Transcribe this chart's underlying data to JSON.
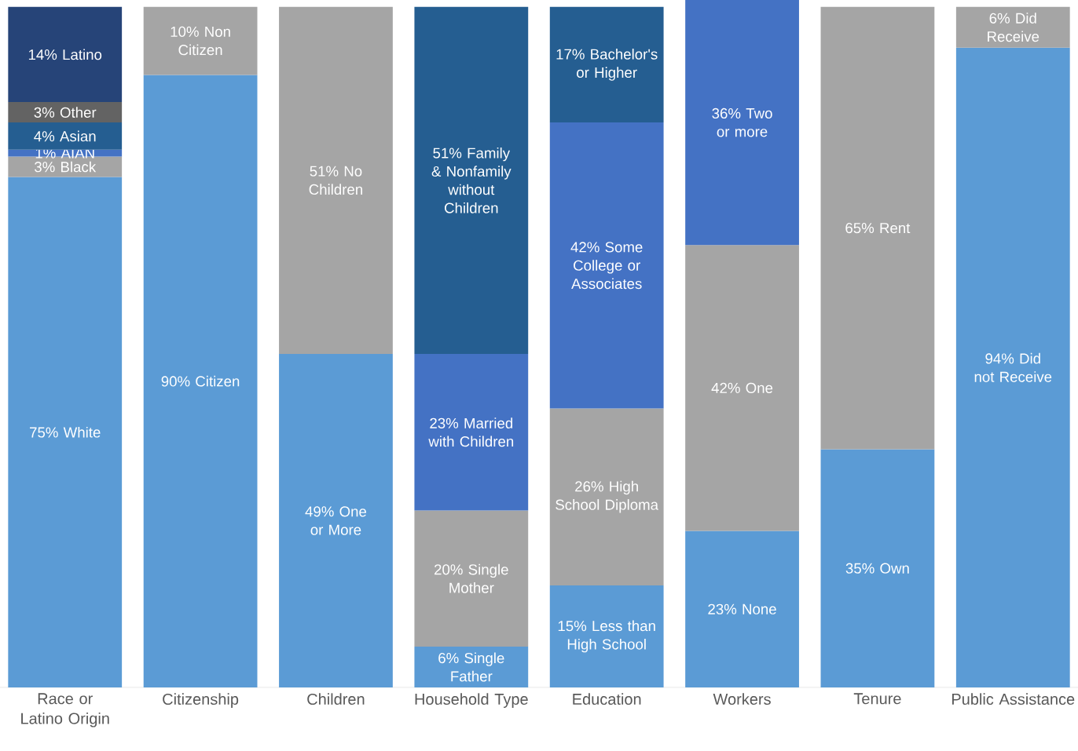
{
  "chart_data": {
    "type": "bar",
    "stacked": true,
    "data_labels": true,
    "categories": [
      "Race or Latino Origin",
      "Citizenship",
      "Children",
      "Household Type",
      "Education",
      "Workers",
      "Tenure",
      "Public Assistance"
    ],
    "ylim": [
      0,
      101
    ],
    "series": [
      {
        "values": [
          75,
          90,
          49,
          6,
          15,
          23,
          35,
          94
        ],
        "colors": [
          "#5b9bd5",
          "#5b9bd5",
          "#5b9bd5",
          "#5b9bd5",
          "#5b9bd5",
          "#5b9bd5",
          "#5b9bd5",
          "#5b9bd5"
        ],
        "value_labels": [
          "75% White",
          "90% Citizen",
          "49% One or More",
          "6% Single Father",
          "15% Less than High School",
          "23% None",
          "35% Own",
          "94% Did not Receive"
        ]
      },
      {
        "values": [
          3,
          10,
          51,
          20,
          26,
          42,
          65,
          6
        ],
        "colors": [
          "#a5a5a5",
          "#a5a5a5",
          "#a5a5a5",
          "#a5a5a5",
          "#a5a5a5",
          "#a5a5a5",
          "#a5a5a5",
          "#a5a5a5"
        ],
        "value_labels": [
          "3% Black",
          "10% Non Citizen",
          "51% No Children",
          "20% Single Mother",
          "26% High School Diploma",
          "42% One",
          "65% Rent",
          "6% Did Receive"
        ]
      },
      {
        "values": [
          1,
          null,
          null,
          23,
          42,
          36,
          null,
          null
        ],
        "colors": [
          "#4472c4",
          null,
          null,
          "#4472c4",
          "#4472c4",
          "#4472c4",
          null,
          null
        ],
        "value_labels": [
          "1% AIAN",
          null,
          null,
          "23% Married with Children",
          "42% Some College or Associates",
          "36% Two or more",
          null,
          null
        ]
      },
      {
        "values": [
          4,
          null,
          null,
          51,
          17,
          null,
          null,
          null
        ],
        "colors": [
          "#255e91",
          null,
          null,
          "#255e91",
          "#255e91",
          null,
          null,
          null
        ],
        "value_labels": [
          "4% Asian",
          null,
          null,
          "51% Family & Nonfamily without Children",
          "17% Bachelor's or Higher",
          null,
          null,
          null
        ]
      },
      {
        "values": [
          3,
          null,
          null,
          null,
          null,
          null,
          null,
          null
        ],
        "colors": [
          "#636363",
          null,
          null,
          null,
          null,
          null,
          null,
          null
        ],
        "value_labels": [
          "3% Other",
          null,
          null,
          null,
          null,
          null,
          null,
          null
        ]
      },
      {
        "values": [
          14,
          null,
          null,
          null,
          null,
          null,
          null,
          null
        ],
        "colors": [
          "#264478",
          null,
          null,
          null,
          null,
          null,
          null,
          null
        ],
        "value_labels": [
          "14% Latino",
          null,
          null,
          null,
          null,
          null,
          null,
          null
        ]
      }
    ]
  }
}
